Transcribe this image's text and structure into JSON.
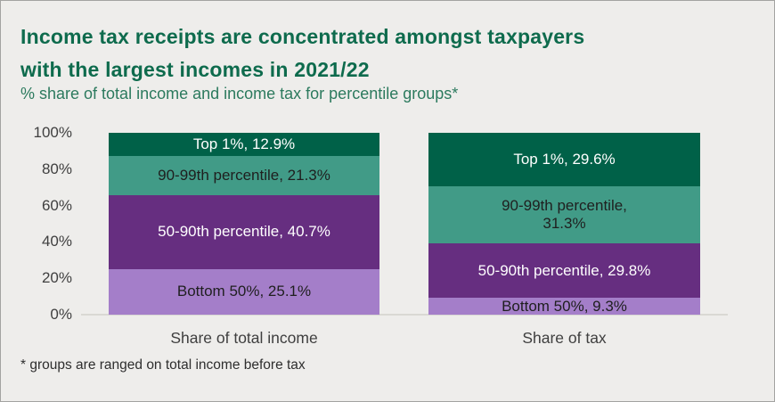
{
  "header": {
    "title_line1": "Income tax receipts are concentrated amongst taxpayers",
    "title_line2": "with the largest incomes in 2021/22",
    "subtitle": "% share of total income and income tax for percentile groups*"
  },
  "footnote": "* groups are ranged on total income before tax",
  "colors": {
    "background": "#eeedeb",
    "title_green": "#0e6b4d",
    "subtitle_green": "#2c7a5e",
    "axis_text": "#3f3f3f",
    "baseline": "#d9d8d4",
    "segment_green": "#006148",
    "segment_teal": "#419b87",
    "segment_dark_purple": "#662e80",
    "segment_light_purple": "#a47ec9",
    "label_on_dark": "#ffffff",
    "label_on_light": "#1f1f1f"
  },
  "chart_data": {
    "type": "bar",
    "stacked": true,
    "title": "Income tax receipts are concentrated amongst taxpayers with the largest incomes in 2021/22",
    "subtitle": "% share of total income and income tax for percentile groups*",
    "categories": [
      "Share of total income",
      "Share of tax"
    ],
    "series": [
      {
        "name": "Bottom 50%",
        "values": [
          25.1,
          9.3
        ],
        "color": "#a47ec9",
        "text_color": "#1f1f1f",
        "labels": [
          "Bottom 50%, 25.1%",
          "Bottom 50%, 9.3%"
        ]
      },
      {
        "name": "50-90th percentile",
        "values": [
          40.7,
          29.8
        ],
        "color": "#662e80",
        "text_color": "#ffffff",
        "labels": [
          "50-90th percentile, 40.7%",
          "50-90th percentile, 29.8%"
        ]
      },
      {
        "name": "90-99th percentile",
        "values": [
          21.3,
          31.3
        ],
        "color": "#419b87",
        "text_color": "#1f1f1f",
        "labels": [
          "90-99th percentile, 21.3%",
          "90-99th percentile,\n31.3%"
        ]
      },
      {
        "name": "Top 1%",
        "values": [
          12.9,
          29.6
        ],
        "color": "#006148",
        "text_color": "#ffffff",
        "labels": [
          "Top 1%, 12.9%",
          "Top 1%, 29.6%"
        ]
      }
    ],
    "y_ticks": [
      {
        "label": "0%",
        "value": 0
      },
      {
        "label": "20%",
        "value": 20
      },
      {
        "label": "40%",
        "value": 40
      },
      {
        "label": "60%",
        "value": 60
      },
      {
        "label": "80%",
        "value": 80
      },
      {
        "label": "100%",
        "value": 100
      }
    ],
    "ylim": [
      0,
      100
    ],
    "legend": "none",
    "grid": false
  }
}
